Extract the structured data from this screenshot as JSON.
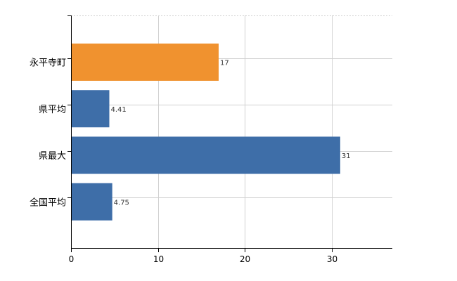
{
  "chart_data": {
    "type": "bar",
    "orientation": "horizontal",
    "categories": [
      "永平寺町",
      "県平均",
      "県最大",
      "全国平均"
    ],
    "values": [
      17,
      4.41,
      31,
      4.75
    ],
    "value_labels": [
      "17",
      "4.41",
      "31",
      "4.75"
    ],
    "bar_colors": [
      "#f0922f",
      "#3e6ea8",
      "#3e6ea8",
      "#3e6ea8"
    ],
    "xlim": [
      0,
      37
    ],
    "xticks": [
      0,
      10,
      20,
      30
    ],
    "xtick_labels": [
      "0",
      "10",
      "20",
      "30"
    ],
    "grid": true,
    "title": "",
    "xlabel": "",
    "ylabel": ""
  },
  "colors": {
    "highlight": "#f0922f",
    "bar": "#3e6ea8",
    "grid": "#d0d0d0",
    "axis": "#000000"
  }
}
